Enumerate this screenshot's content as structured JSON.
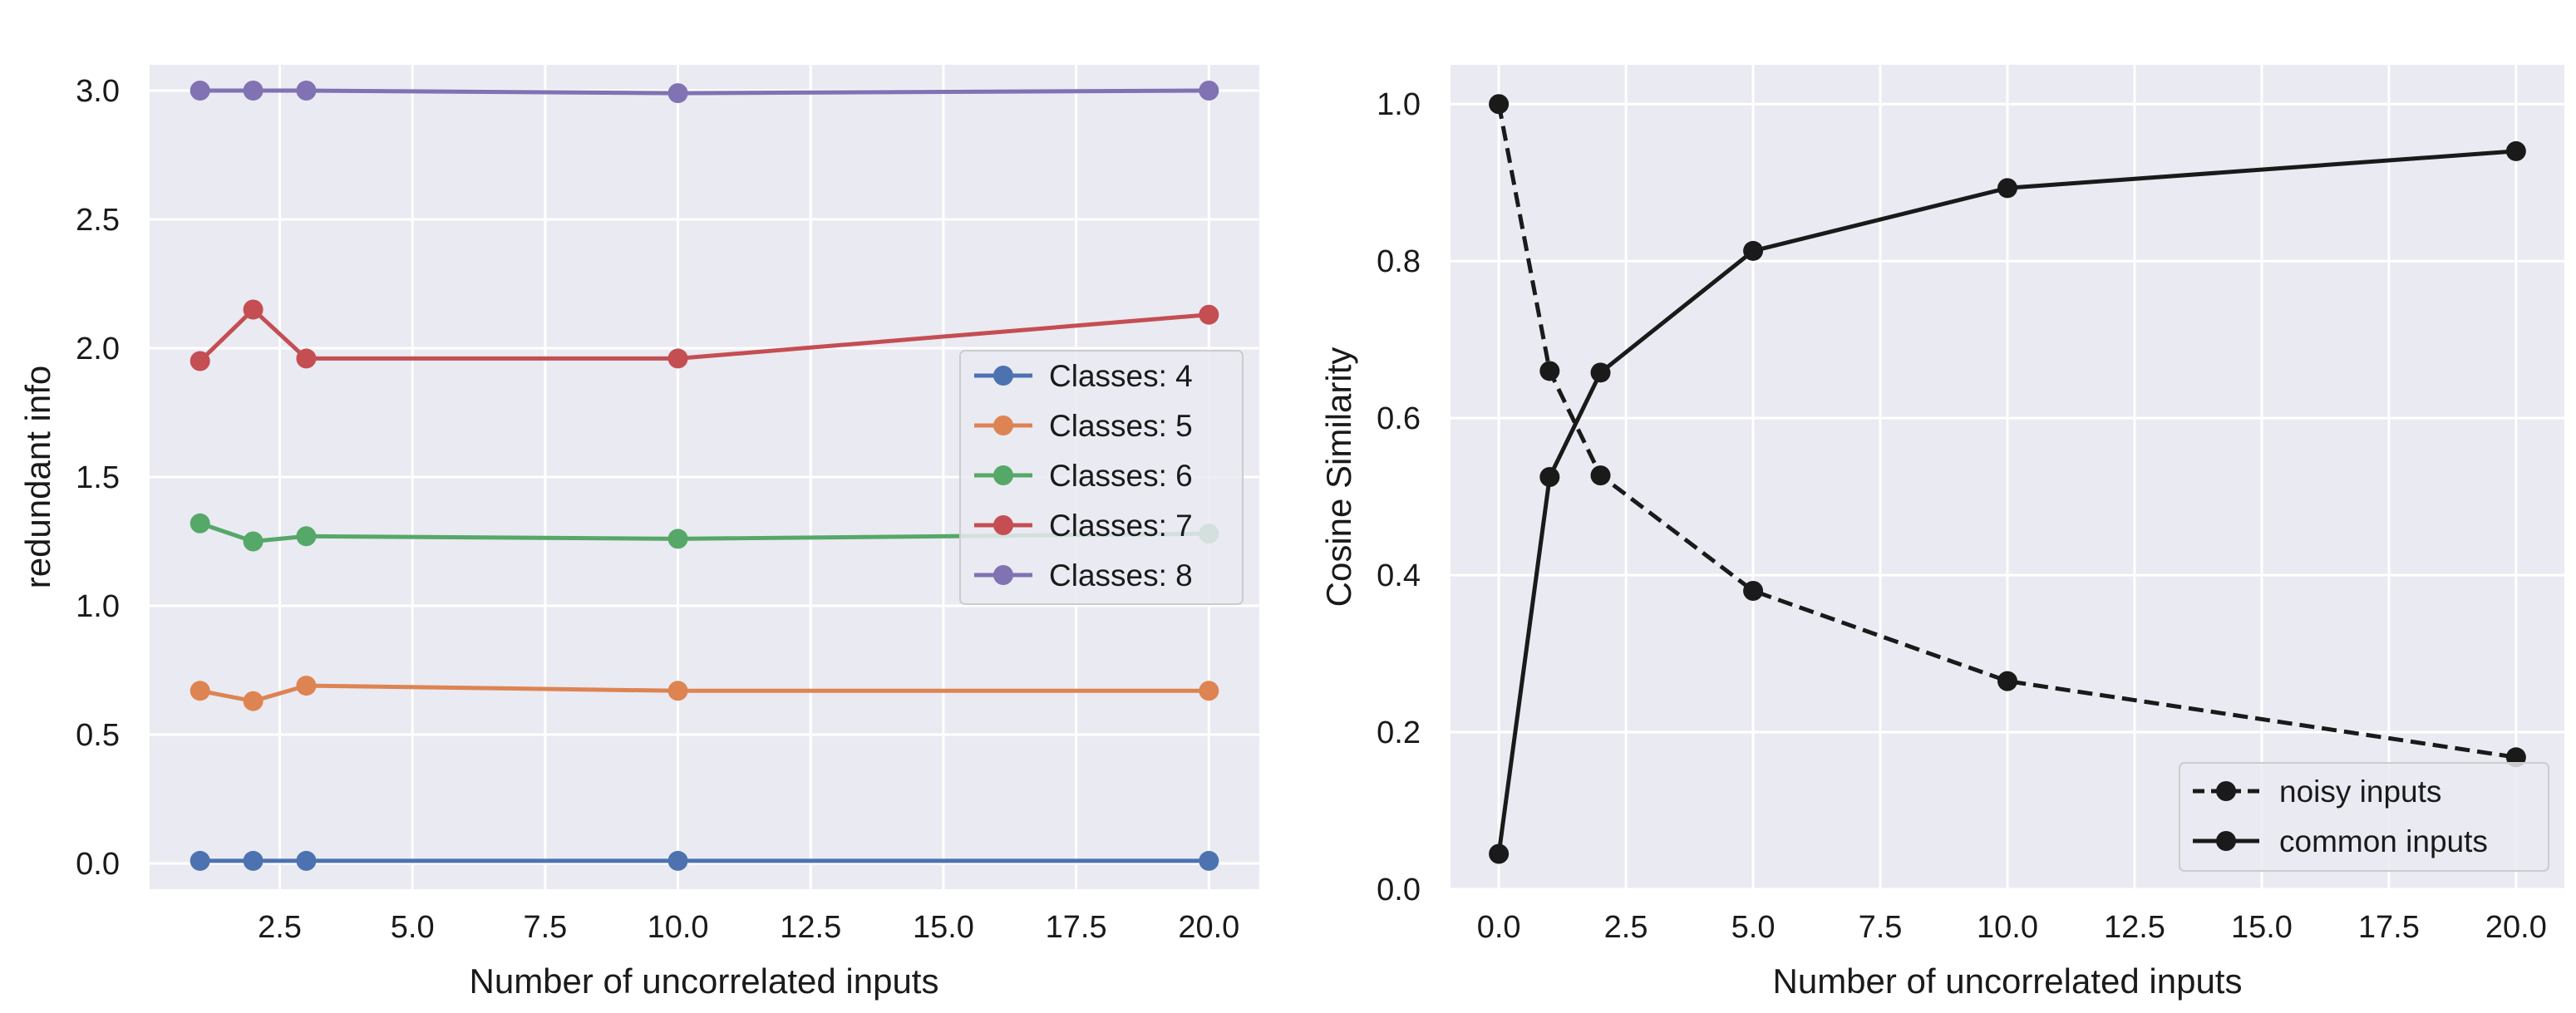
{
  "chart_data": [
    {
      "type": "line",
      "xlabel": "Number of uncorrelated inputs",
      "ylabel": "redundant info",
      "xlim": [
        0.05,
        20.95
      ],
      "ylim": [
        -0.1,
        3.1
      ],
      "xticks": [
        2.5,
        5.0,
        7.5,
        10.0,
        12.5,
        15.0,
        17.5,
        20.0
      ],
      "xtick_labels": [
        "2.5",
        "5.0",
        "7.5",
        "10.0",
        "12.5",
        "15.0",
        "17.5",
        "20.0"
      ],
      "yticks": [
        0.0,
        0.5,
        1.0,
        1.5,
        2.0,
        2.5,
        3.0
      ],
      "ytick_labels": [
        "0.0",
        "0.5",
        "1.0",
        "1.5",
        "2.0",
        "2.5",
        "3.0"
      ],
      "grid": true,
      "legend_position": "center-right",
      "x": [
        1,
        2,
        3,
        10,
        20
      ],
      "series": [
        {
          "name": "Classes: 4",
          "color": "#4c72b0",
          "style": "solid",
          "values": [
            0.01,
            0.01,
            0.01,
            0.01,
            0.01
          ]
        },
        {
          "name": "Classes: 5",
          "color": "#dd8452",
          "style": "solid",
          "values": [
            0.67,
            0.63,
            0.69,
            0.67,
            0.67
          ]
        },
        {
          "name": "Classes: 6",
          "color": "#55a868",
          "style": "solid",
          "values": [
            1.32,
            1.25,
            1.27,
            1.26,
            1.28
          ]
        },
        {
          "name": "Classes: 7",
          "color": "#c44e52",
          "style": "solid",
          "values": [
            1.95,
            2.15,
            1.96,
            1.96,
            2.13
          ]
        },
        {
          "name": "Classes: 8",
          "color": "#8172b3",
          "style": "solid",
          "values": [
            3.0,
            3.0,
            3.0,
            2.99,
            3.0
          ]
        }
      ]
    },
    {
      "type": "line",
      "xlabel": "Number of uncorrelated inputs",
      "ylabel": "Cosine Similarity",
      "xlim": [
        -0.95,
        20.95
      ],
      "ylim": [
        0.0,
        1.05
      ],
      "xticks": [
        0.0,
        2.5,
        5.0,
        7.5,
        10.0,
        12.5,
        15.0,
        17.5,
        20.0
      ],
      "xtick_labels": [
        "0.0",
        "2.5",
        "5.0",
        "7.5",
        "10.0",
        "12.5",
        "15.0",
        "17.5",
        "20.0"
      ],
      "yticks": [
        0.0,
        0.2,
        0.4,
        0.6,
        0.8,
        1.0
      ],
      "ytick_labels": [
        "0.0",
        "0.2",
        "0.4",
        "0.6",
        "0.8",
        "1.0"
      ],
      "grid": true,
      "legend_position": "lower-right",
      "x": [
        0,
        1,
        2,
        5,
        10,
        20
      ],
      "series": [
        {
          "name": "noisy inputs",
          "color": "#1a1a1a",
          "style": "dashed",
          "values": [
            1.0,
            0.66,
            0.527,
            0.38,
            0.265,
            0.168
          ]
        },
        {
          "name": "common inputs",
          "color": "#1a1a1a",
          "style": "solid",
          "values": [
            0.045,
            0.525,
            0.658,
            0.813,
            0.893,
            0.94
          ]
        }
      ]
    }
  ]
}
